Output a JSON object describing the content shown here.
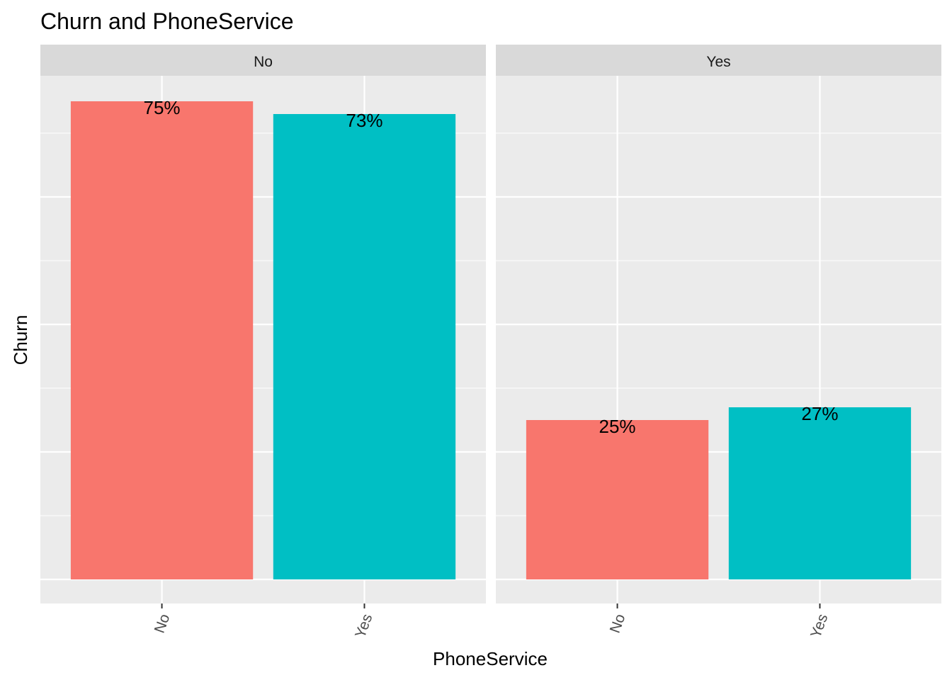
{
  "chart_data": {
    "type": "bar",
    "title": "Churn and PhoneService",
    "xlabel": "PhoneService",
    "ylabel": "Churn",
    "ylim": [
      0,
      0.79
    ],
    "grid": true,
    "legend": "none",
    "facet_by": "Churn",
    "categories": [
      "No",
      "Yes"
    ],
    "colors": {
      "No": "#F8766D",
      "Yes": "#00BFC4"
    },
    "background": {
      "panel": "#EBEBEB",
      "strip": "#D9D9D9",
      "grid": "#FFFFFF"
    },
    "facets": [
      {
        "name": "No",
        "values": [
          0.75,
          0.73
        ],
        "labels": [
          "75%",
          "73%"
        ]
      },
      {
        "name": "Yes",
        "values": [
          0.25,
          0.27
        ],
        "labels": [
          "25%",
          "27%"
        ]
      }
    ]
  }
}
